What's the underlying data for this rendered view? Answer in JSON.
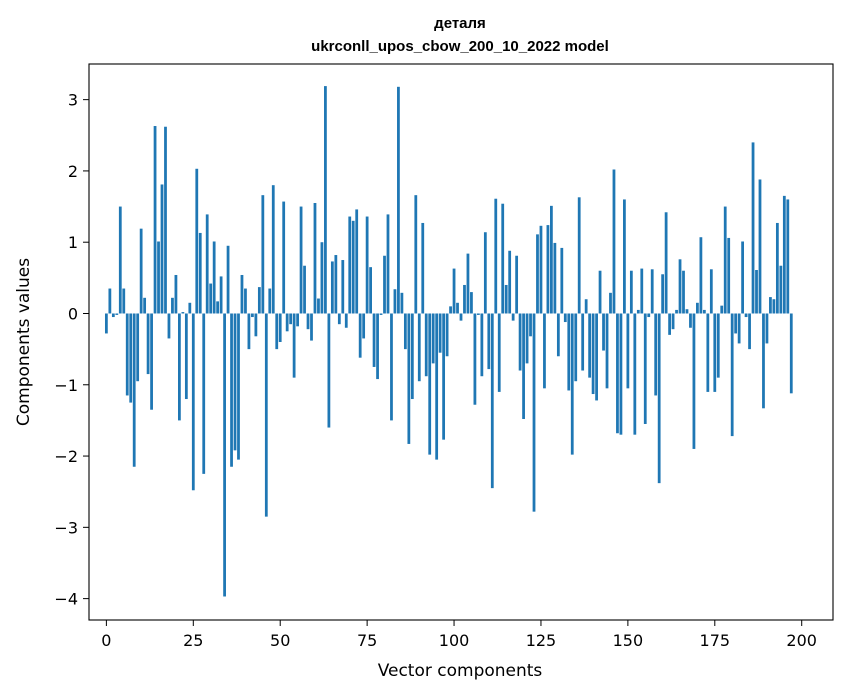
{
  "chart_data": {
    "type": "bar",
    "title": "деталя",
    "subtitle": "ukrconll_upos_cbow_200_10_2022 model",
    "xlabel": "Vector components",
    "ylabel": "Components values",
    "xlim": [
      -5,
      209
    ],
    "ylim": [
      -4.3,
      3.5
    ],
    "xticks": [
      0,
      25,
      50,
      75,
      100,
      125,
      150,
      175,
      200
    ],
    "yticks": [
      -4,
      -3,
      -2,
      -1,
      0,
      1,
      2,
      3
    ],
    "bar_color": "#1f77b4",
    "grid": false,
    "legend": false,
    "values": [
      -0.28,
      0.35,
      -0.05,
      -0.02,
      1.5,
      0.35,
      -1.15,
      -1.25,
      -2.15,
      -0.95,
      1.19,
      0.22,
      -0.85,
      -1.35,
      2.63,
      1.01,
      1.81,
      2.62,
      -0.35,
      0.22,
      0.54,
      -1.5,
      0.02,
      -1.2,
      0.15,
      -2.48,
      2.03,
      1.13,
      -2.25,
      1.39,
      0.42,
      1.01,
      0.17,
      0.52,
      -3.97,
      0.95,
      -2.15,
      -1.92,
      -2.05,
      0.54,
      0.35,
      -0.5,
      -0.05,
      -0.32,
      0.37,
      1.66,
      -2.85,
      0.35,
      1.8,
      -0.5,
      -0.4,
      1.57,
      -0.25,
      -0.15,
      -0.9,
      -0.18,
      1.5,
      0.67,
      -0.22,
      -0.38,
      1.55,
      0.21,
      1.0,
      3.19,
      -1.6,
      0.73,
      0.82,
      -0.15,
      0.75,
      -0.2,
      1.36,
      1.3,
      1.46,
      -0.62,
      -0.35,
      1.36,
      0.65,
      -0.75,
      -0.92,
      -0.02,
      0.81,
      1.39,
      -1.5,
      0.34,
      3.18,
      0.29,
      -0.5,
      -1.83,
      -1.2,
      1.66,
      -0.95,
      1.27,
      -0.88,
      -1.98,
      -0.7,
      -2.05,
      -0.55,
      -1.77,
      -0.6,
      0.1,
      0.63,
      0.15,
      -0.1,
      0.4,
      0.84,
      0.3,
      -1.28,
      -0.02,
      -0.88,
      1.14,
      -0.78,
      -2.45,
      1.61,
      -1.1,
      1.54,
      0.4,
      0.88,
      -0.1,
      0.81,
      -0.8,
      -1.48,
      -0.7,
      -0.32,
      -2.78,
      1.11,
      1.23,
      -1.05,
      1.24,
      1.51,
      0.99,
      -0.6,
      0.92,
      -0.12,
      -1.08,
      -1.98,
      -0.95,
      1.63,
      -0.8,
      0.2,
      -0.9,
      -1.13,
      -1.22,
      0.6,
      -0.52,
      -1.05,
      0.29,
      2.02,
      -1.68,
      -1.7,
      1.6,
      -1.05,
      0.6,
      -1.7,
      0.05,
      0.63,
      -1.55,
      -0.05,
      0.62,
      -1.15,
      -2.38,
      0.55,
      1.42,
      -0.3,
      -0.22,
      0.05,
      0.76,
      0.6,
      0.06,
      -0.2,
      -1.9,
      0.15,
      1.07,
      0.05,
      -1.1,
      0.62,
      -1.1,
      -0.9,
      0.11,
      1.5,
      1.06,
      -1.72,
      -0.28,
      -0.42,
      1.01,
      -0.05,
      -0.5,
      2.4,
      0.61,
      1.88,
      -1.33,
      -0.42,
      0.23,
      0.2,
      1.27,
      0.67,
      1.65,
      1.6,
      -1.12
    ]
  }
}
